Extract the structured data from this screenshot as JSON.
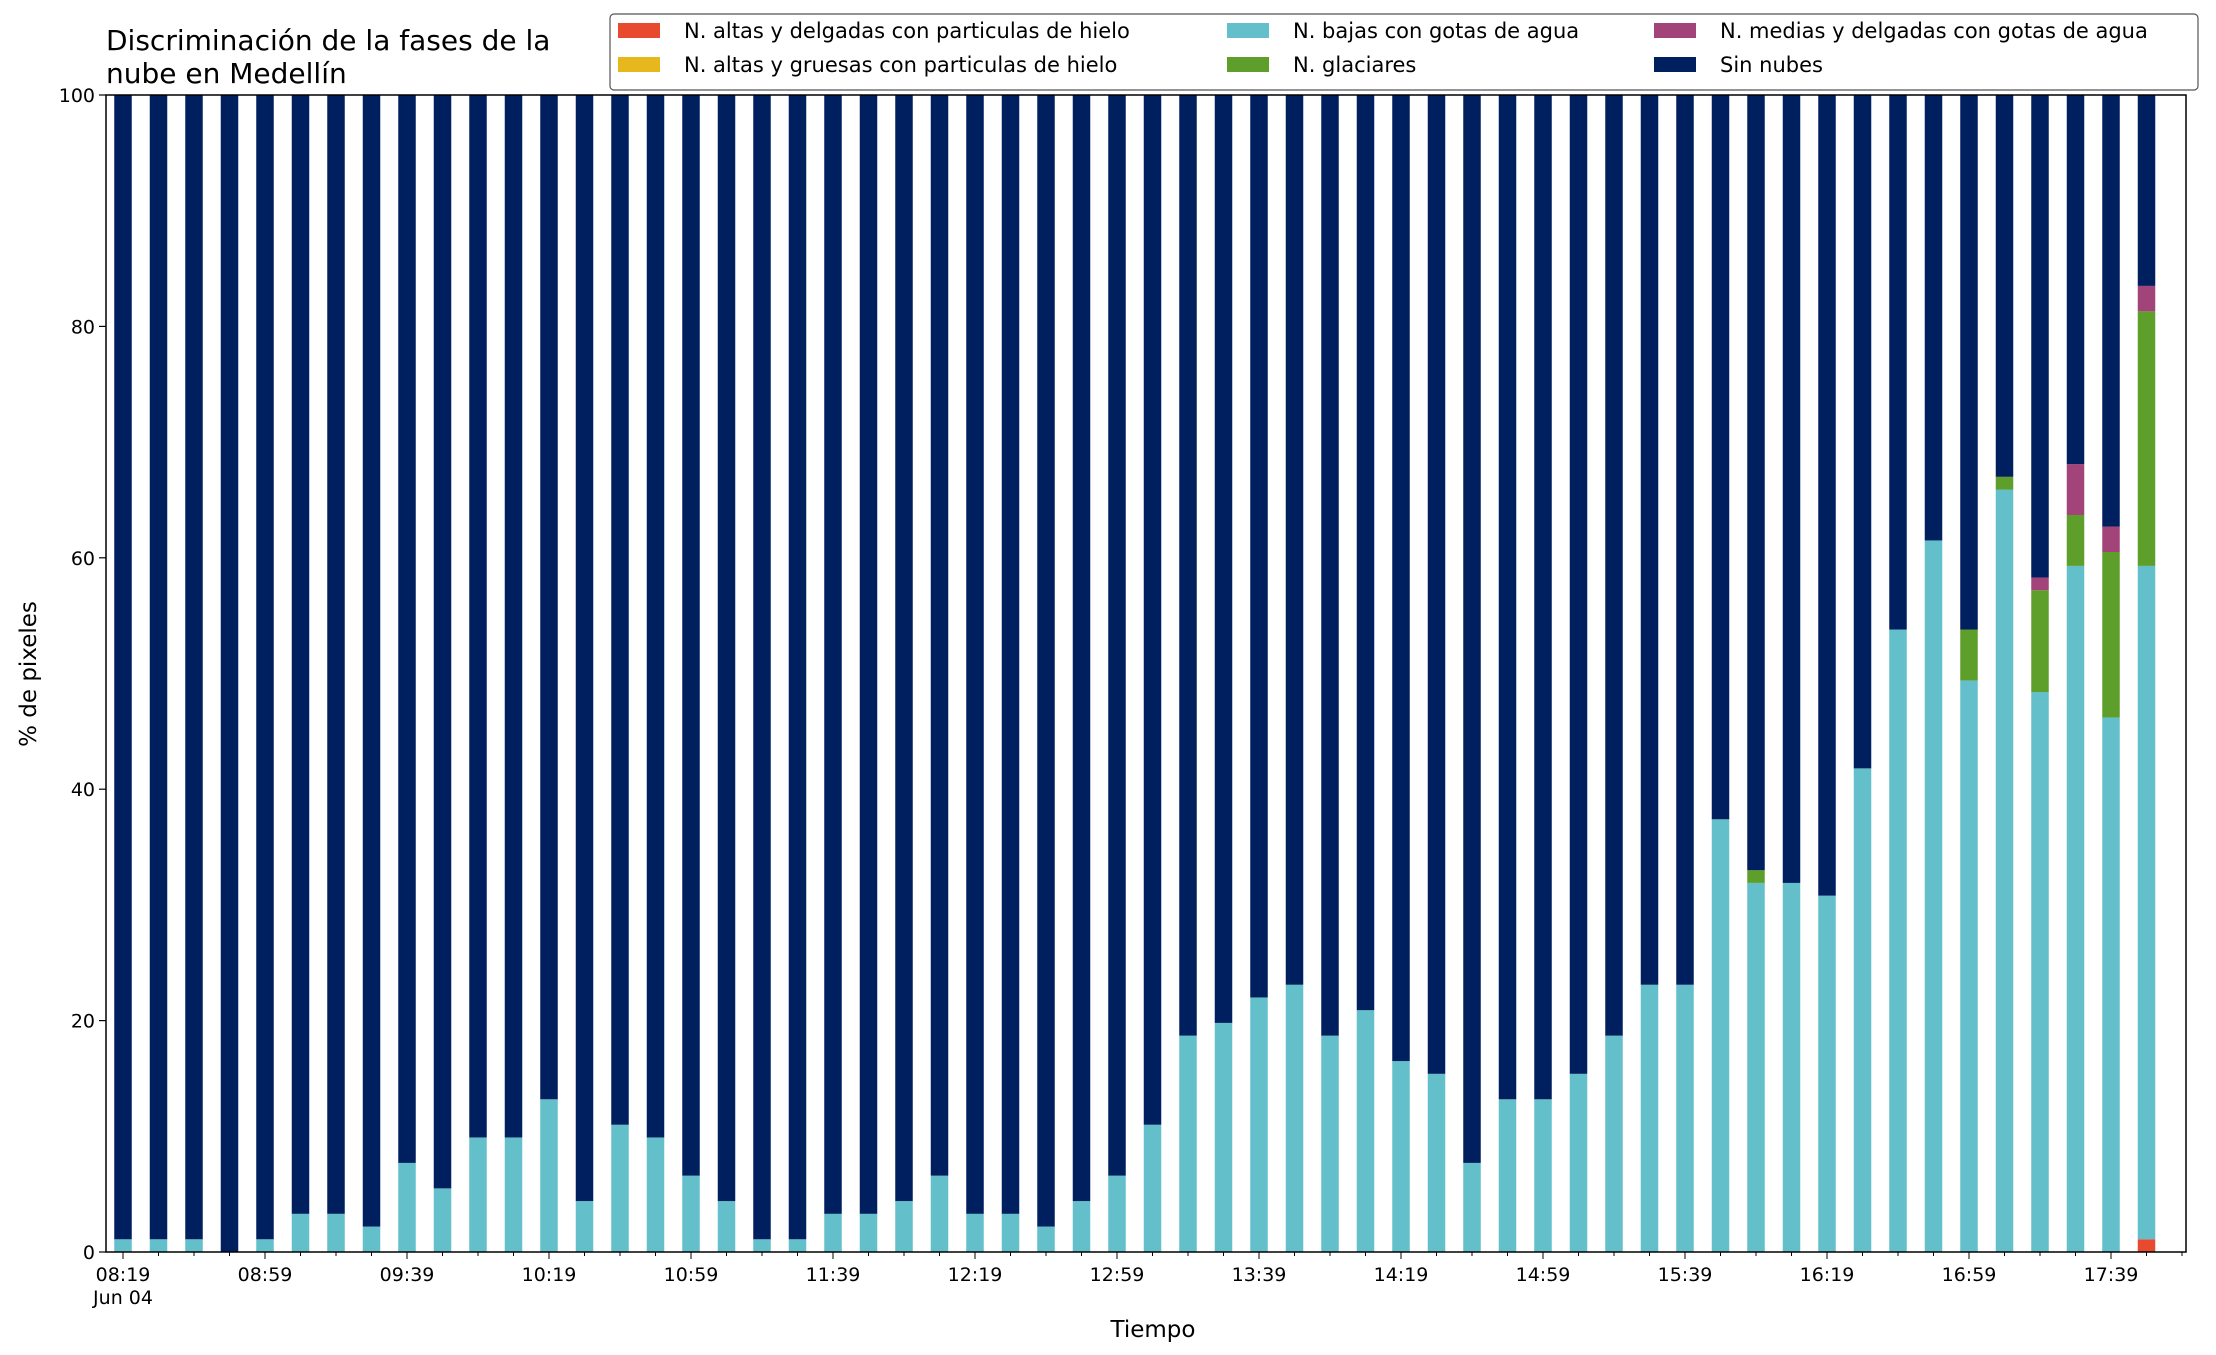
{
  "chart_data": {
    "type": "bar",
    "stacked": true,
    "title_lines": [
      "Discriminación de la fases de la",
      "nube en Medellín"
    ],
    "xlabel": "Tiempo",
    "ylabel": "% de pixeles",
    "ylim": [
      0,
      100
    ],
    "yticks": [
      0,
      20,
      40,
      60,
      80,
      100
    ],
    "xtick_labels": [
      "08:19",
      "08:59",
      "09:39",
      "10:19",
      "10:59",
      "11:39",
      "12:19",
      "12:59",
      "13:39",
      "14:19",
      "14:59",
      "15:39",
      "16:19",
      "16:59",
      "17:39"
    ],
    "xtick_sublabel": "Jun 04",
    "grid": false,
    "legend_position": "top-right",
    "categories": [
      "08:19",
      "08:29",
      "08:39",
      "08:49",
      "08:59",
      "09:09",
      "09:19",
      "09:29",
      "09:39",
      "09:49",
      "09:59",
      "10:09",
      "10:19",
      "10:29",
      "10:39",
      "10:49",
      "10:59",
      "11:09",
      "11:19",
      "11:29",
      "11:39",
      "11:49",
      "11:59",
      "12:09",
      "12:19",
      "12:29",
      "12:39",
      "12:49",
      "12:59",
      "13:09",
      "13:19",
      "13:29",
      "13:39",
      "13:49",
      "13:59",
      "14:09",
      "14:19",
      "14:29",
      "14:39",
      "14:49",
      "14:59",
      "15:09",
      "15:19",
      "15:29",
      "15:39",
      "15:49",
      "15:59",
      "16:09",
      "16:19",
      "16:29",
      "16:39",
      "16:49",
      "16:59",
      "17:09",
      "17:19",
      "17:29",
      "17:39",
      "17:49"
    ],
    "series": [
      {
        "name": "N. altas y delgadas con particulas de hielo",
        "color": "#e84a2f",
        "values": [
          0,
          0,
          0,
          0,
          0,
          0,
          0,
          0,
          0,
          0,
          0,
          0,
          0,
          0,
          0,
          0,
          0,
          0,
          0,
          0,
          0,
          0,
          0,
          0,
          0,
          0,
          0,
          0,
          0,
          0,
          0,
          0,
          0,
          0,
          0,
          0,
          0,
          0,
          0,
          0,
          0,
          0,
          0,
          0,
          0,
          0,
          0,
          0,
          0,
          0,
          0,
          0,
          0,
          0,
          0,
          0,
          0,
          1.1
        ]
      },
      {
        "name": "N. altas y gruesas con particulas de hielo",
        "color": "#e6b81e",
        "values": [
          0,
          0,
          0,
          0,
          0,
          0,
          0,
          0,
          0,
          0,
          0,
          0,
          0,
          0,
          0,
          0,
          0,
          0,
          0,
          0,
          0,
          0,
          0,
          0,
          0,
          0,
          0,
          0,
          0,
          0,
          0,
          0,
          0,
          0,
          0,
          0,
          0,
          0,
          0,
          0,
          0,
          0,
          0,
          0,
          0,
          0,
          0,
          0,
          0,
          0,
          0,
          0,
          0,
          0,
          0,
          0,
          0,
          0
        ]
      },
      {
        "name": "N. bajas con gotas de agua",
        "color": "#63bfca",
        "values": [
          1.1,
          1.1,
          1.1,
          0,
          1.1,
          3.3,
          3.3,
          2.2,
          7.7,
          5.5,
          9.9,
          9.9,
          13.2,
          4.4,
          11.0,
          9.9,
          6.6,
          4.4,
          1.1,
          1.1,
          3.3,
          3.3,
          4.4,
          6.6,
          3.3,
          3.3,
          2.2,
          4.4,
          6.6,
          11.0,
          18.7,
          19.8,
          22.0,
          23.1,
          18.7,
          20.9,
          16.5,
          15.4,
          7.7,
          13.2,
          13.2,
          15.4,
          18.7,
          23.1,
          23.1,
          37.4,
          31.9,
          31.9,
          30.8,
          41.8,
          53.8,
          61.5,
          49.4,
          65.9,
          48.4,
          59.3,
          46.2,
          58.2
        ]
      },
      {
        "name": "N. glaciares",
        "color": "#5e9e2a",
        "values": [
          0,
          0,
          0,
          0,
          0,
          0,
          0,
          0,
          0,
          0,
          0,
          0,
          0,
          0,
          0,
          0,
          0,
          0,
          0,
          0,
          0,
          0,
          0,
          0,
          0,
          0,
          0,
          0,
          0,
          0,
          0,
          0,
          0,
          0,
          0,
          0,
          0,
          0,
          0,
          0,
          0,
          0,
          0,
          0,
          0,
          0,
          1.1,
          0,
          0,
          0,
          0,
          0,
          4.4,
          1.1,
          8.8,
          4.4,
          14.3,
          22.0
        ]
      },
      {
        "name": "N. medias y delgadas con gotas de agua",
        "color": "#a2447a",
        "values": [
          0,
          0,
          0,
          0,
          0,
          0,
          0,
          0,
          0,
          0,
          0,
          0,
          0,
          0,
          0,
          0,
          0,
          0,
          0,
          0,
          0,
          0,
          0,
          0,
          0,
          0,
          0,
          0,
          0,
          0,
          0,
          0,
          0,
          0,
          0,
          0,
          0,
          0,
          0,
          0,
          0,
          0,
          0,
          0,
          0,
          0,
          0,
          0,
          0,
          0,
          0,
          0,
          0,
          0,
          1.1,
          4.4,
          2.2,
          2.2
        ]
      },
      {
        "name": "Sin nubes",
        "color": "#001f5e",
        "values": [
          98.9,
          98.9,
          98.9,
          100,
          98.9,
          96.7,
          96.7,
          97.8,
          92.3,
          94.5,
          90.1,
          90.1,
          86.8,
          95.6,
          89.0,
          90.1,
          93.4,
          95.6,
          98.9,
          98.9,
          96.7,
          96.7,
          95.6,
          93.4,
          96.7,
          96.7,
          97.8,
          95.6,
          93.4,
          89.0,
          81.3,
          80.2,
          78.0,
          76.9,
          81.3,
          79.1,
          83.5,
          84.6,
          92.3,
          86.8,
          86.8,
          84.6,
          81.3,
          76.9,
          76.9,
          62.6,
          67.0,
          68.1,
          69.2,
          58.2,
          46.2,
          38.5,
          46.2,
          33.0,
          41.7,
          31.9,
          37.3,
          16.5
        ]
      }
    ]
  }
}
